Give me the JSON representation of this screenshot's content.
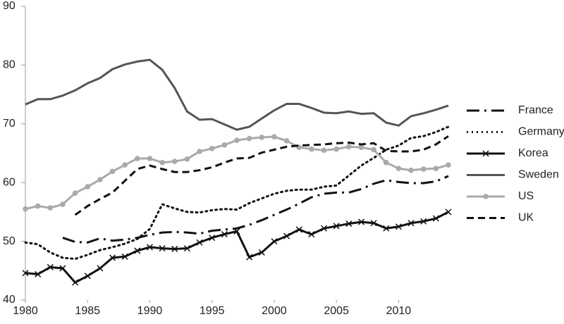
{
  "chart_data": {
    "type": "line",
    "x": [
      1980,
      1981,
      1982,
      1983,
      1984,
      1985,
      1986,
      1987,
      1988,
      1989,
      1990,
      1991,
      1992,
      1993,
      1994,
      1995,
      1996,
      1997,
      1998,
      1999,
      2000,
      2001,
      2002,
      2003,
      2004,
      2005,
      2006,
      2007,
      2008,
      2009,
      2010,
      2011,
      2012,
      2013,
      2014
    ],
    "xlim": [
      1980,
      2014
    ],
    "xticks": [
      1980,
      1985,
      1990,
      1995,
      2000,
      2005,
      2010
    ],
    "ylim": [
      40,
      90
    ],
    "yticks": [
      40,
      50,
      60,
      70,
      80,
      90
    ],
    "legend": "right",
    "series": [
      {
        "name": "France",
        "color": "#111111",
        "style": "dash-dot",
        "values": [
          null,
          null,
          null,
          50.6,
          49.9,
          49.8,
          50.5,
          50.1,
          50.3,
          50.6,
          51.1,
          51.5,
          51.6,
          51.5,
          51.3,
          51.8,
          52.0,
          52.2,
          52.8,
          53.6,
          54.5,
          55.4,
          56.4,
          57.5,
          58.1,
          58.3,
          58.3,
          58.9,
          59.8,
          60.4,
          60.1,
          59.9,
          59.9,
          60.2,
          61.1
        ]
      },
      {
        "name": "Germany",
        "color": "#111111",
        "style": "dotted",
        "values": [
          49.8,
          49.5,
          48.1,
          47.2,
          47.0,
          47.7,
          48.5,
          49.0,
          49.6,
          50.4,
          52.1,
          56.3,
          55.6,
          55.0,
          54.9,
          55.3,
          55.5,
          55.4,
          56.5,
          57.3,
          58.1,
          58.6,
          58.8,
          58.8,
          59.3,
          59.5,
          61.2,
          62.9,
          64.2,
          65.6,
          66.3,
          67.6,
          67.9,
          68.6,
          69.5
        ]
      },
      {
        "name": "Korea",
        "color": "#111111",
        "style": "solid",
        "marker": "x",
        "values": [
          44.6,
          44.4,
          45.6,
          45.4,
          43.0,
          44.1,
          45.4,
          47.2,
          47.4,
          48.4,
          49.0,
          48.8,
          48.7,
          48.8,
          49.8,
          50.6,
          51.2,
          51.7,
          47.3,
          48.1,
          50.0,
          50.9,
          52.0,
          51.2,
          52.2,
          52.6,
          53.0,
          53.3,
          53.1,
          52.2,
          52.5,
          53.1,
          53.4,
          53.9,
          55.0
        ]
      },
      {
        "name": "Sweden",
        "color": "#555555",
        "style": "solid",
        "values": [
          73.3,
          74.2,
          74.2,
          74.8,
          75.7,
          76.9,
          77.8,
          79.3,
          80.1,
          80.6,
          80.9,
          79.2,
          76.1,
          72.1,
          70.7,
          70.8,
          69.9,
          69.0,
          69.5,
          70.9,
          72.3,
          73.4,
          73.4,
          72.7,
          71.9,
          71.8,
          72.1,
          71.7,
          71.8,
          70.2,
          69.7,
          71.3,
          71.8,
          72.4,
          73.1
        ]
      },
      {
        "name": "US",
        "color": "#aaaaaa",
        "style": "solid",
        "marker": "circle",
        "values": [
          55.5,
          56.0,
          55.7,
          56.3,
          58.2,
          59.3,
          60.5,
          61.9,
          63.0,
          64.1,
          64.1,
          63.4,
          63.6,
          64.0,
          65.3,
          65.8,
          66.4,
          67.2,
          67.5,
          67.7,
          67.8,
          67.1,
          66.0,
          65.7,
          65.5,
          65.7,
          66.1,
          66.0,
          65.6,
          63.4,
          62.4,
          62.1,
          62.3,
          62.4,
          63.0
        ]
      },
      {
        "name": "UK",
        "color": "#111111",
        "style": "dashed",
        "values": [
          null,
          null,
          null,
          null,
          54.5,
          56.0,
          57.2,
          58.3,
          60.3,
          62.3,
          62.9,
          62.3,
          61.8,
          61.8,
          62.1,
          62.6,
          63.4,
          64.1,
          64.2,
          65.1,
          65.6,
          66.1,
          66.3,
          66.4,
          66.5,
          66.7,
          66.8,
          66.5,
          66.7,
          65.4,
          65.3,
          65.3,
          65.6,
          66.5,
          67.9
        ]
      }
    ]
  }
}
